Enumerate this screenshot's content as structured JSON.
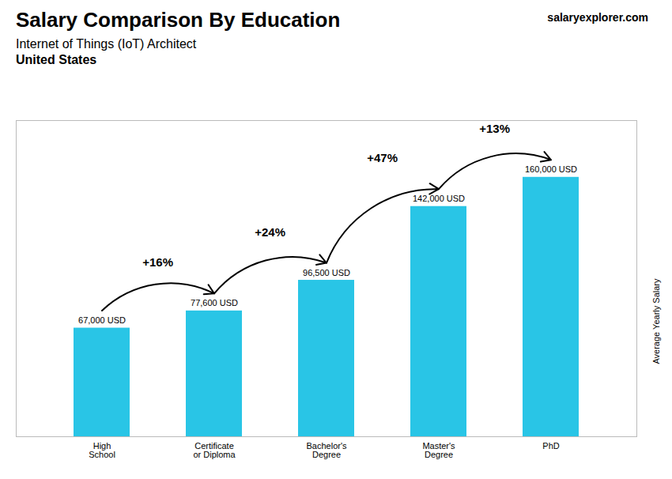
{
  "chart_data": {
    "type": "bar",
    "title": "Salary Comparison By Education",
    "subtitle": [
      "Internet of Things (IoT) Architect",
      "United States"
    ],
    "categories": [
      "High\nSchool",
      "Certificate\nor Diploma",
      "Bachelor's\nDegree",
      "Master's\nDegree",
      "PhD"
    ],
    "values": [
      67000,
      77600,
      96500,
      142000,
      160000
    ],
    "value_labels": [
      "67,000 USD",
      "77,600 USD",
      "96,500 USD",
      "142,000 USD",
      "160,000 USD"
    ],
    "data_labels": true,
    "color": "#29c5e6",
    "ylabel": "Average Yearly Salary",
    "ylim": [
      0,
      195000
    ],
    "tick_labels": "x",
    "grid": false,
    "annotations": [
      {
        "text": "+16%",
        "from": "High\nSchool",
        "to": "Certificate\nor Diploma"
      },
      {
        "text": "+24%",
        "from": "Certificate\nor Diploma",
        "to": "Bachelor's\nDegree"
      },
      {
        "text": "+47%",
        "from": "Bachelor's\nDegree",
        "to": "Master's\nDegree"
      },
      {
        "text": "+13%",
        "from": "Master's\nDegree",
        "to": "PhD"
      },
      {
        "text": "salaryexplorer.com"
      }
    ]
  }
}
